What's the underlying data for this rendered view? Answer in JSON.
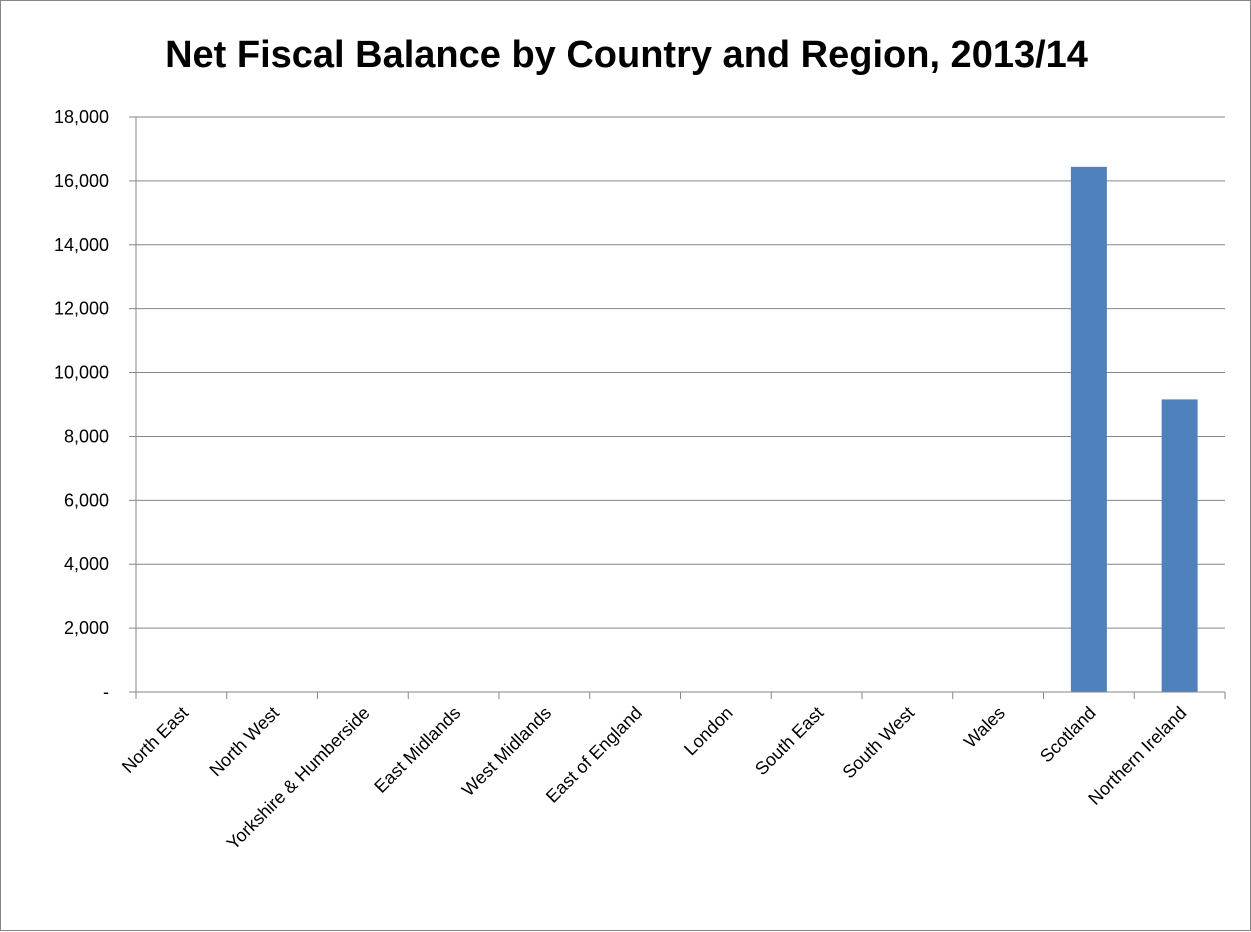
{
  "chart_data": {
    "type": "bar",
    "title": "Net Fiscal Balance by Country and Region, 2013/14",
    "xlabel": "",
    "ylabel": "",
    "categories": [
      "North East",
      "North West",
      "Yorkshire & Humberside",
      "East Midlands",
      "West Midlands",
      "East of England",
      "London",
      "South East",
      "South West",
      "Wales",
      "Scotland",
      "Northern Ireland"
    ],
    "values": [
      0,
      0,
      0,
      0,
      0,
      0,
      0,
      0,
      0,
      0,
      16440,
      9160
    ],
    "ylim": [
      0,
      18000
    ],
    "yticks": [
      0,
      2000,
      4000,
      6000,
      8000,
      10000,
      12000,
      14000,
      16000,
      18000
    ],
    "ytick_labels": [
      "-",
      "2,000",
      "4,000",
      "6,000",
      "8,000",
      "10,000",
      "12,000",
      "14,000",
      "16,000",
      "18,000"
    ],
    "grid": true,
    "legend": "none",
    "bar_color": "#4F81BD",
    "grid_color": "#868686"
  }
}
